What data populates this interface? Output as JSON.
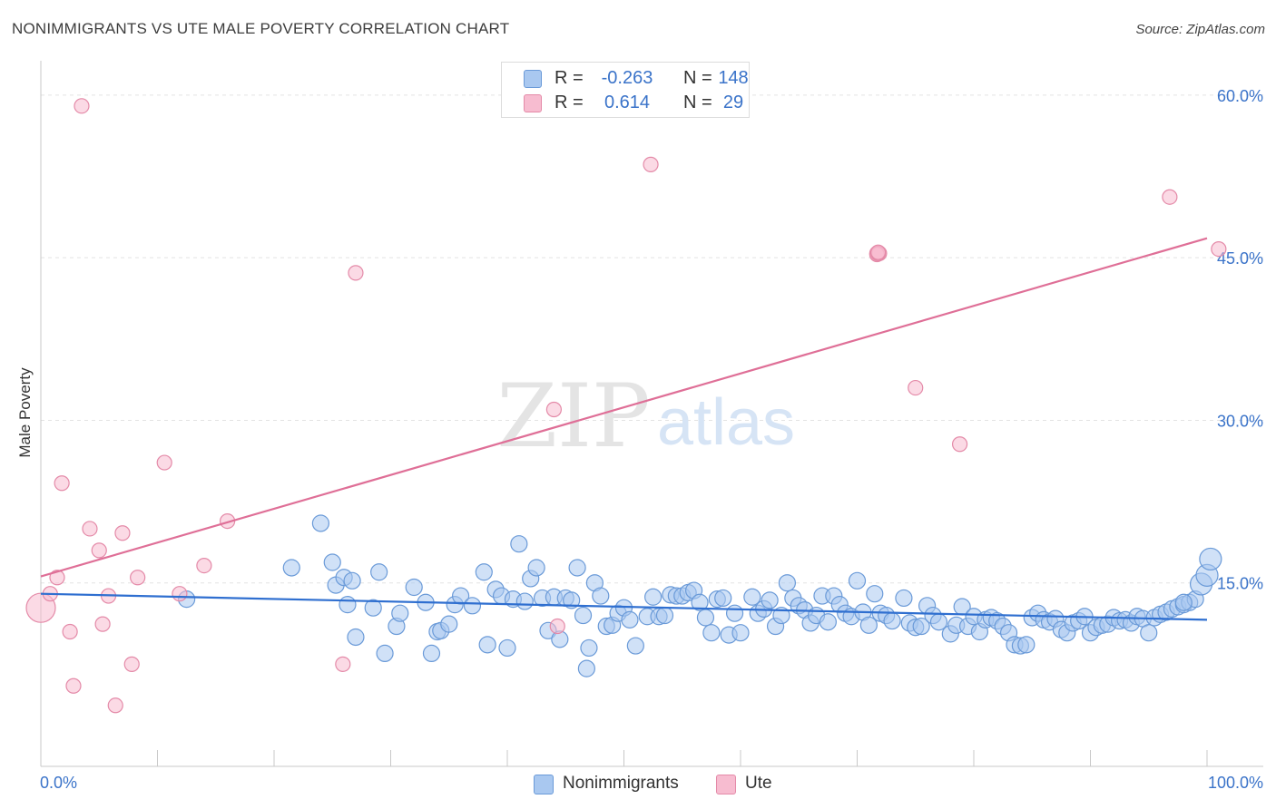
{
  "title": "NONIMMIGRANTS VS UTE MALE POVERTY CORRELATION CHART",
  "source": "Source: ZipAtlas.com",
  "watermark": {
    "zip": "ZIP",
    "atlas": "atlas"
  },
  "legend": {
    "rows": [
      {
        "r_label": "R =",
        "r_value": "-0.263",
        "n_label": "N =",
        "n_value": "148",
        "color": "#a9c8f0",
        "border": "#6a9ad8"
      },
      {
        "r_label": "R =",
        "r_value": "0.614",
        "n_label": "N =",
        "n_value": "29",
        "color": "#f7bcd0",
        "border": "#e48aa8"
      }
    ]
  },
  "bottom_legend": {
    "items": [
      {
        "label": "Nonimmigrants",
        "color": "#a9c8f0",
        "border": "#6a9ad8"
      },
      {
        "label": "Ute",
        "color": "#f7bcd0",
        "border": "#e48aa8"
      }
    ]
  },
  "chart_data": {
    "type": "scatter",
    "title": "NONIMMIGRANTS VS UTE MALE POVERTY CORRELATION CHART",
    "xlabel": "",
    "ylabel": "Male Poverty",
    "xlim": [
      0,
      100
    ],
    "ylim": [
      0,
      62.5
    ],
    "x_tick_labels": [
      "0.0%",
      "100.0%"
    ],
    "y_ticks": [
      15,
      30,
      45,
      60
    ],
    "y_tick_labels": [
      "15.0%",
      "30.0%",
      "45.0%",
      "60.0%"
    ],
    "grid": true,
    "legend_position": "top-center",
    "series": [
      {
        "name": "Nonimmigrants",
        "color": "#a9c8f0",
        "stroke": "#6a9ad8",
        "line_color": "#2f6fd0",
        "trend": {
          "x0": 0,
          "y0": 14.0,
          "x1": 100,
          "y1": 11.6
        },
        "points": [
          [
            12.5,
            13.5
          ],
          [
            21.5,
            16.4
          ],
          [
            24,
            20.5
          ],
          [
            25,
            16.9
          ],
          [
            25.3,
            14.8
          ],
          [
            26,
            15.5
          ],
          [
            26.3,
            13.0
          ],
          [
            26.7,
            15.2
          ],
          [
            27,
            10.0
          ],
          [
            29,
            16.0
          ],
          [
            28.5,
            12.7
          ],
          [
            29.5,
            8.5
          ],
          [
            30.5,
            11.0
          ],
          [
            30.8,
            12.2
          ],
          [
            32,
            14.6
          ],
          [
            33,
            13.2
          ],
          [
            33.5,
            8.5
          ],
          [
            34,
            10.5
          ],
          [
            34.3,
            10.6
          ],
          [
            35,
            11.2
          ],
          [
            35.5,
            13.0
          ],
          [
            36,
            13.8
          ],
          [
            37,
            12.9
          ],
          [
            38,
            16.0
          ],
          [
            38.3,
            9.3
          ],
          [
            39,
            14.4
          ],
          [
            39.5,
            13.8
          ],
          [
            40,
            9.0
          ],
          [
            40.5,
            13.5
          ],
          [
            41,
            18.6
          ],
          [
            41.5,
            13.3
          ],
          [
            42,
            15.4
          ],
          [
            42.5,
            16.4
          ],
          [
            43,
            13.6
          ],
          [
            43.5,
            10.6
          ],
          [
            44,
            13.7
          ],
          [
            44.5,
            9.8
          ],
          [
            45,
            13.6
          ],
          [
            45.5,
            13.4
          ],
          [
            46,
            16.4
          ],
          [
            46.5,
            12.0
          ],
          [
            47,
            9.0
          ],
          [
            46.8,
            7.1
          ],
          [
            47.5,
            15.0
          ],
          [
            48,
            13.8
          ],
          [
            48.5,
            11.0
          ],
          [
            49,
            11.1
          ],
          [
            49.5,
            12.2
          ],
          [
            50,
            12.7
          ],
          [
            50.5,
            11.6
          ],
          [
            51,
            9.2
          ],
          [
            52,
            11.9
          ],
          [
            52.5,
            13.7
          ],
          [
            53,
            11.9
          ],
          [
            53.5,
            12.0
          ],
          [
            54,
            13.9
          ],
          [
            54.5,
            13.8
          ],
          [
            55,
            13.8
          ],
          [
            55.5,
            14.1
          ],
          [
            56,
            14.3
          ],
          [
            56.5,
            13.2
          ],
          [
            57,
            11.8
          ],
          [
            57.5,
            10.4
          ],
          [
            58,
            13.5
          ],
          [
            58.5,
            13.6
          ],
          [
            59,
            10.2
          ],
          [
            59.5,
            12.2
          ],
          [
            60,
            10.4
          ],
          [
            61,
            13.7
          ],
          [
            61.5,
            12.2
          ],
          [
            62,
            12.6
          ],
          [
            62.5,
            13.4
          ],
          [
            63,
            11.0
          ],
          [
            63.5,
            12.0
          ],
          [
            64,
            15.0
          ],
          [
            64.5,
            13.6
          ],
          [
            65,
            12.9
          ],
          [
            65.5,
            12.5
          ],
          [
            66,
            11.3
          ],
          [
            66.5,
            12.0
          ],
          [
            67,
            13.8
          ],
          [
            67.5,
            11.4
          ],
          [
            68,
            13.8
          ],
          [
            68.5,
            13.0
          ],
          [
            69,
            12.2
          ],
          [
            69.5,
            11.9
          ],
          [
            70,
            15.2
          ],
          [
            70.5,
            12.3
          ],
          [
            71,
            11.1
          ],
          [
            71.5,
            14.0
          ],
          [
            72,
            12.2
          ],
          [
            72.5,
            12.0
          ],
          [
            73,
            11.5
          ],
          [
            74,
            13.6
          ],
          [
            74.5,
            11.3
          ],
          [
            75,
            10.9
          ],
          [
            75.5,
            11.0
          ],
          [
            76,
            12.9
          ],
          [
            76.5,
            12.0
          ],
          [
            77,
            11.4
          ],
          [
            78,
            10.3
          ],
          [
            78.5,
            11.1
          ],
          [
            79,
            12.8
          ],
          [
            79.5,
            11.0
          ],
          [
            80,
            11.9
          ],
          [
            80.5,
            10.5
          ],
          [
            81,
            11.6
          ],
          [
            81.5,
            11.8
          ],
          [
            82,
            11.5
          ],
          [
            82.5,
            11.0
          ],
          [
            83,
            10.4
          ],
          [
            83.5,
            9.3
          ],
          [
            84,
            9.2
          ],
          [
            84.5,
            9.3
          ],
          [
            85,
            11.8
          ],
          [
            85.5,
            12.2
          ],
          [
            86,
            11.6
          ],
          [
            86.5,
            11.4
          ],
          [
            87,
            11.7
          ],
          [
            87.5,
            10.7
          ],
          [
            88,
            10.4
          ],
          [
            88.5,
            11.3
          ],
          [
            89,
            11.5
          ],
          [
            89.5,
            11.9
          ],
          [
            90,
            10.4
          ],
          [
            90.5,
            10.9
          ],
          [
            91,
            11.1
          ],
          [
            91.5,
            11.2
          ],
          [
            92,
            11.8
          ],
          [
            92.5,
            11.5
          ],
          [
            93,
            11.6
          ],
          [
            93.5,
            11.3
          ],
          [
            94,
            11.9
          ],
          [
            94.5,
            11.7
          ],
          [
            95,
            10.4
          ],
          [
            95.5,
            11.8
          ],
          [
            96,
            12.1
          ],
          [
            96.5,
            12.3
          ],
          [
            97,
            12.6
          ],
          [
            97.5,
            12.8
          ],
          [
            98,
            13.0
          ],
          [
            98.5,
            13.2
          ],
          [
            99,
            13.5
          ],
          [
            99.5,
            14.9
          ],
          [
            100,
            15.7
          ],
          [
            100.3,
            17.2
          ],
          [
            98,
            13.2
          ]
        ]
      },
      {
        "name": "Ute",
        "color": "#f7bcd0",
        "stroke": "#e48aa8",
        "line_color": "#df6f97",
        "trend": {
          "x0": 0,
          "y0": 15.6,
          "x1": 100,
          "y1": 46.8
        },
        "points": [
          [
            0,
            12.7
          ],
          [
            0.8,
            14.0
          ],
          [
            1.4,
            15.5
          ],
          [
            1.8,
            24.2
          ],
          [
            2.5,
            10.5
          ],
          [
            2.8,
            5.5
          ],
          [
            3.5,
            59.0
          ],
          [
            4.2,
            20.0
          ],
          [
            5,
            18.0
          ],
          [
            5.3,
            11.2
          ],
          [
            5.8,
            13.8
          ],
          [
            6.4,
            3.7
          ],
          [
            7,
            19.6
          ],
          [
            7.8,
            7.5
          ],
          [
            8.3,
            15.5
          ],
          [
            10.6,
            26.1
          ],
          [
            11.9,
            14.0
          ],
          [
            14,
            16.6
          ],
          [
            16,
            20.7
          ],
          [
            25.9,
            7.5
          ],
          [
            27,
            43.6
          ],
          [
            44,
            31.0
          ],
          [
            44.3,
            11.0
          ],
          [
            52.3,
            53.6
          ],
          [
            71.7,
            45.4
          ],
          [
            71.9,
            45.4
          ],
          [
            71.7,
            45.3
          ],
          [
            71.8,
            45.4
          ],
          [
            71.7,
            45.4
          ],
          [
            71.8,
            45.4
          ],
          [
            71.7,
            45.4
          ],
          [
            71.8,
            45.5
          ],
          [
            71.7,
            45.4
          ],
          [
            71.8,
            45.4
          ],
          [
            71.7,
            45.4
          ],
          [
            71.8,
            45.4
          ],
          [
            71.7,
            45.4
          ],
          [
            71.8,
            45.4
          ],
          [
            71.7,
            45.4
          ],
          [
            71.8,
            45.4
          ],
          [
            71.7,
            45.4
          ],
          [
            71.8,
            45.4
          ],
          [
            71.7,
            45.4
          ],
          [
            71.8,
            45.4
          ],
          [
            71.7,
            45.4
          ],
          [
            71.8,
            45.4
          ],
          [
            71.7,
            45.4
          ],
          [
            71.8,
            45.4
          ],
          [
            71.7,
            45.4
          ],
          [
            71.8,
            45.4
          ],
          [
            71.7,
            45.4
          ],
          [
            71.8,
            45.4
          ],
          [
            71.7,
            45.4
          ],
          [
            71.8,
            45.4
          ],
          [
            71.7,
            45.4
          ],
          [
            71.8,
            45.4
          ],
          [
            71.7,
            45.4
          ],
          [
            71.8,
            45.4
          ],
          [
            75,
            33.0
          ],
          [
            78.8,
            27.8
          ],
          [
            96.8,
            50.6
          ],
          [
            101,
            45.8
          ]
        ]
      }
    ]
  }
}
